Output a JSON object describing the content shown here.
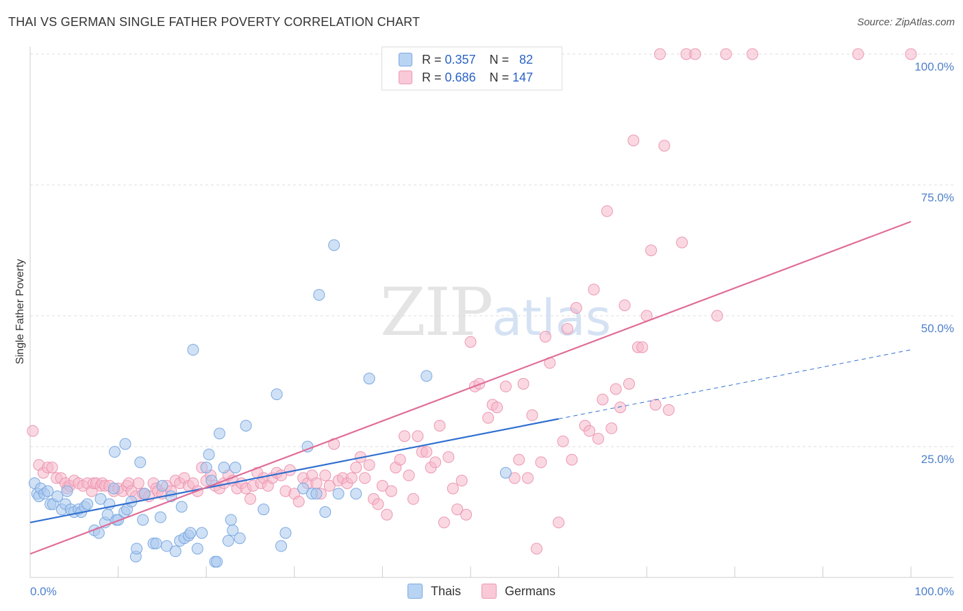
{
  "title": "THAI VS GERMAN SINGLE FATHER POVERTY CORRELATION CHART",
  "source": "Source: ZipAtlas.com",
  "watermark": {
    "zip": "ZIP",
    "atlas": "atlas"
  },
  "colors": {
    "thais_fill": "#a9c8ee",
    "thais_stroke": "#7aa8e0",
    "thais_line": "#2f6fd0",
    "germans_fill": "#f5b8cb",
    "germans_stroke": "#ec96b2",
    "germans_line": "#e06c97",
    "tick_text": "#4d7fcc",
    "grid": "#dddddd"
  },
  "legend": {
    "rows": [
      {
        "r_label": "R =",
        "r_value": "0.357",
        "n_label": "N =",
        "n_value": "82"
      },
      {
        "r_label": "R =",
        "r_value": "0.686",
        "n_label": "N =",
        "n_value": "147"
      }
    ]
  },
  "bottom_legend": [
    "Thais",
    "Germans"
  ],
  "chart_data": {
    "type": "scatter",
    "title": "THAI VS GERMAN SINGLE FATHER POVERTY CORRELATION CHART",
    "xlabel": "",
    "ylabel": "Single Father Poverty",
    "xlim": [
      0,
      100
    ],
    "ylim": [
      0,
      100
    ],
    "x_tick_labels": [
      "0.0%",
      "100.0%"
    ],
    "y_tick_labels": [
      "25.0%",
      "50.0%",
      "75.0%",
      "100.0%"
    ],
    "y_ticks": [
      25,
      50,
      75,
      100
    ],
    "grid": true,
    "legend_position": "top-center",
    "series": [
      {
        "name": "Thais",
        "R": 0.357,
        "N": 82,
        "trend_solid": {
          "x": [
            0,
            60
          ],
          "y": [
            10.5,
            30.3
          ]
        },
        "trend_dashed": {
          "x": [
            60,
            100
          ],
          "y": [
            30.3,
            43.5
          ]
        },
        "points": [
          [
            0.5,
            18
          ],
          [
            0.8,
            16
          ],
          [
            1,
            15.5
          ],
          [
            1.2,
            17
          ],
          [
            1.6,
            16
          ],
          [
            2,
            16.5
          ],
          [
            2.3,
            14
          ],
          [
            2.6,
            14
          ],
          [
            3.1,
            15.5
          ],
          [
            3.6,
            13
          ],
          [
            4,
            14
          ],
          [
            4.2,
            16.5
          ],
          [
            4.6,
            13
          ],
          [
            5,
            12.5
          ],
          [
            5.5,
            13
          ],
          [
            5.8,
            12.5
          ],
          [
            6.2,
            13.5
          ],
          [
            6.5,
            14
          ],
          [
            7.3,
            9
          ],
          [
            7.8,
            8.5
          ],
          [
            8,
            15
          ],
          [
            8.5,
            10.5
          ],
          [
            8.8,
            12
          ],
          [
            9,
            14
          ],
          [
            9.5,
            17
          ],
          [
            9.6,
            24
          ],
          [
            9.8,
            11
          ],
          [
            10,
            11
          ],
          [
            10.7,
            12.5
          ],
          [
            10.8,
            25.5
          ],
          [
            11,
            13
          ],
          [
            11.5,
            14.5
          ],
          [
            12,
            4
          ],
          [
            12.1,
            5.5
          ],
          [
            12.5,
            22
          ],
          [
            12.8,
            11
          ],
          [
            13,
            16
          ],
          [
            14,
            6.5
          ],
          [
            14.3,
            6.5
          ],
          [
            14.8,
            11.5
          ],
          [
            15,
            17.5
          ],
          [
            15.5,
            6
          ],
          [
            16,
            15.5
          ],
          [
            16.5,
            5
          ],
          [
            17,
            7
          ],
          [
            17.2,
            13.5
          ],
          [
            17.5,
            7.5
          ],
          [
            18,
            8
          ],
          [
            18.2,
            8.5
          ],
          [
            18.5,
            43.5
          ],
          [
            19,
            5.5
          ],
          [
            19.5,
            8.5
          ],
          [
            20,
            21
          ],
          [
            20.3,
            23.5
          ],
          [
            20.6,
            18.5
          ],
          [
            21,
            3
          ],
          [
            21.2,
            3
          ],
          [
            21.5,
            27.5
          ],
          [
            22,
            21
          ],
          [
            22.5,
            7
          ],
          [
            22.8,
            11
          ],
          [
            23,
            9
          ],
          [
            23.3,
            21
          ],
          [
            23.8,
            7.5
          ],
          [
            24.5,
            29
          ],
          [
            26.5,
            13
          ],
          [
            28,
            35
          ],
          [
            28.5,
            6
          ],
          [
            29,
            8.5
          ],
          [
            31,
            17
          ],
          [
            31.5,
            25
          ],
          [
            32,
            16
          ],
          [
            32.5,
            16
          ],
          [
            32.8,
            54
          ],
          [
            33.5,
            12.5
          ],
          [
            34.5,
            63.5
          ],
          [
            35,
            16
          ],
          [
            37,
            16
          ],
          [
            38.5,
            38
          ],
          [
            45,
            38.5
          ],
          [
            54,
            20
          ]
        ]
      },
      {
        "name": "Germans",
        "R": 0.686,
        "N": 147,
        "trend_solid": {
          "x": [
            0,
            100
          ],
          "y": [
            4.5,
            68
          ]
        },
        "points": [
          [
            0.3,
            28
          ],
          [
            1,
            21.5
          ],
          [
            1.5,
            20
          ],
          [
            2,
            21
          ],
          [
            2.5,
            21
          ],
          [
            3,
            19
          ],
          [
            3.5,
            19
          ],
          [
            4,
            18
          ],
          [
            4.2,
            17
          ],
          [
            4.5,
            17.5
          ],
          [
            5,
            18.5
          ],
          [
            5.5,
            18
          ],
          [
            6,
            17.5
          ],
          [
            6.5,
            18
          ],
          [
            7,
            16.5
          ],
          [
            7.2,
            18
          ],
          [
            7.5,
            18
          ],
          [
            8,
            17.5
          ],
          [
            8.2,
            18
          ],
          [
            8.5,
            17.5
          ],
          [
            9,
            17.5
          ],
          [
            9.5,
            16.5
          ],
          [
            10,
            17
          ],
          [
            10.5,
            16.5
          ],
          [
            11,
            17.5
          ],
          [
            11.2,
            18
          ],
          [
            11.5,
            16.5
          ],
          [
            12,
            15.5
          ],
          [
            12.3,
            18
          ],
          [
            12.8,
            16
          ],
          [
            13,
            16
          ],
          [
            13.5,
            15.5
          ],
          [
            14,
            18
          ],
          [
            14.3,
            17
          ],
          [
            14.5,
            16.5
          ],
          [
            15,
            16
          ],
          [
            15.5,
            17.5
          ],
          [
            16,
            16.5
          ],
          [
            16.5,
            18.5
          ],
          [
            17,
            18
          ],
          [
            17.5,
            19
          ],
          [
            18,
            17.5
          ],
          [
            18.5,
            18
          ],
          [
            19,
            16.5
          ],
          [
            19.5,
            21
          ],
          [
            20,
            18.5
          ],
          [
            20.5,
            19.5
          ],
          [
            21,
            17.5
          ],
          [
            21.5,
            17
          ],
          [
            22,
            18
          ],
          [
            22.5,
            19.5
          ],
          [
            23,
            18.5
          ],
          [
            23.5,
            17
          ],
          [
            24,
            18
          ],
          [
            24.5,
            17
          ],
          [
            25,
            15
          ],
          [
            25.3,
            17.5
          ],
          [
            25.8,
            20
          ],
          [
            26.2,
            18
          ],
          [
            26.5,
            19
          ],
          [
            27,
            17.5
          ],
          [
            27.5,
            19
          ],
          [
            28,
            20
          ],
          [
            28.5,
            19.5
          ],
          [
            29,
            16.5
          ],
          [
            29.5,
            20.5
          ],
          [
            30,
            16
          ],
          [
            30.5,
            14.5
          ],
          [
            31,
            19
          ],
          [
            31.5,
            18
          ],
          [
            32,
            19.5
          ],
          [
            32.5,
            18
          ],
          [
            33,
            16
          ],
          [
            33.5,
            19.5
          ],
          [
            34,
            17.5
          ],
          [
            34.5,
            25.5
          ],
          [
            35,
            18.5
          ],
          [
            35.5,
            19
          ],
          [
            36,
            18
          ],
          [
            36.5,
            19
          ],
          [
            37,
            21
          ],
          [
            37.5,
            23
          ],
          [
            38,
            19
          ],
          [
            38.5,
            21.5
          ],
          [
            39,
            15
          ],
          [
            39.5,
            14
          ],
          [
            40,
            17.5
          ],
          [
            40.5,
            12
          ],
          [
            41,
            16.5
          ],
          [
            41.5,
            21
          ],
          [
            42,
            22.5
          ],
          [
            42.5,
            27
          ],
          [
            43,
            19.5
          ],
          [
            43.5,
            15
          ],
          [
            44,
            27
          ],
          [
            44.5,
            24
          ],
          [
            45,
            24
          ],
          [
            45.5,
            21
          ],
          [
            46,
            22
          ],
          [
            46.5,
            29
          ],
          [
            47,
            10.5
          ],
          [
            47.5,
            23
          ],
          [
            48,
            17
          ],
          [
            48.5,
            13
          ],
          [
            49,
            18.5
          ],
          [
            49.5,
            12
          ],
          [
            50,
            45
          ],
          [
            50.5,
            36.5
          ],
          [
            51,
            37
          ],
          [
            52,
            30.5
          ],
          [
            52.5,
            33
          ],
          [
            53,
            32.5
          ],
          [
            54,
            36.5
          ],
          [
            55,
            19
          ],
          [
            55.5,
            22.5
          ],
          [
            56,
            37
          ],
          [
            56.5,
            19
          ],
          [
            57,
            31
          ],
          [
            57.5,
            5.5
          ],
          [
            58,
            22
          ],
          [
            58.5,
            46
          ],
          [
            59,
            41
          ],
          [
            60,
            10.5
          ],
          [
            60.5,
            26
          ],
          [
            61,
            47.5
          ],
          [
            61.5,
            22.5
          ],
          [
            62,
            51.5
          ],
          [
            63,
            29
          ],
          [
            63.5,
            28
          ],
          [
            64,
            55
          ],
          [
            64.5,
            26.5
          ],
          [
            65,
            34
          ],
          [
            65.5,
            70
          ],
          [
            66,
            28.5
          ],
          [
            66.5,
            36
          ],
          [
            67,
            32.5
          ],
          [
            67.5,
            52
          ],
          [
            68,
            37
          ],
          [
            68.5,
            83.5
          ],
          [
            69,
            44
          ],
          [
            69.5,
            44
          ],
          [
            70,
            50
          ],
          [
            70.5,
            62.5
          ],
          [
            71,
            33
          ],
          [
            71.5,
            100
          ],
          [
            72,
            82.5
          ],
          [
            72.5,
            32
          ],
          [
            74,
            64
          ],
          [
            74.5,
            100
          ],
          [
            75.5,
            100
          ],
          [
            78,
            50
          ],
          [
            79,
            100
          ],
          [
            82,
            100
          ],
          [
            94,
            100
          ],
          [
            100,
            100
          ]
        ]
      }
    ]
  }
}
